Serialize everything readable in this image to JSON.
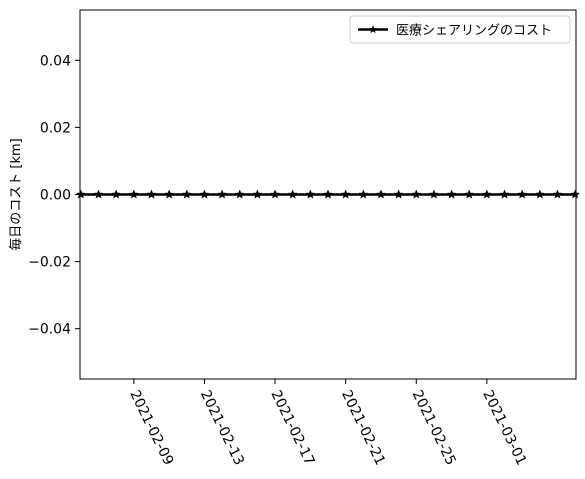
{
  "chart_data": {
    "type": "line",
    "title": "",
    "xlabel": "",
    "ylabel": "毎日のコスト [km]",
    "ylim": [
      -0.055,
      0.055
    ],
    "xlim": [
      "2021-02-06",
      "2021-03-06"
    ],
    "yticks": [
      0.04,
      0.02,
      0.0,
      -0.02,
      -0.04
    ],
    "ytick_labels": [
      "0.04",
      "0.02",
      "0.00",
      "−0.02",
      "−0.04"
    ],
    "xticks": [
      "2021-02-09",
      "2021-02-13",
      "2021-02-17",
      "2021-02-21",
      "2021-02-25",
      "2021-03-01"
    ],
    "legend_position": "top-right",
    "series": [
      {
        "name": "医療シェアリングのコスト",
        "color": "#000000",
        "marker": "star",
        "x": [
          "2021-02-06",
          "2021-02-07",
          "2021-02-08",
          "2021-02-09",
          "2021-02-10",
          "2021-02-11",
          "2021-02-12",
          "2021-02-13",
          "2021-02-14",
          "2021-02-15",
          "2021-02-16",
          "2021-02-17",
          "2021-02-18",
          "2021-02-19",
          "2021-02-20",
          "2021-02-21",
          "2021-02-22",
          "2021-02-23",
          "2021-02-24",
          "2021-02-25",
          "2021-02-26",
          "2021-02-27",
          "2021-02-28",
          "2021-03-01",
          "2021-03-02",
          "2021-03-03",
          "2021-03-04",
          "2021-03-05",
          "2021-03-06"
        ],
        "values": [
          0,
          0,
          0,
          0,
          0,
          0,
          0,
          0,
          0,
          0,
          0,
          0,
          0,
          0,
          0,
          0,
          0,
          0,
          0,
          0,
          0,
          0,
          0,
          0,
          0,
          0,
          0,
          0,
          0
        ]
      }
    ]
  }
}
